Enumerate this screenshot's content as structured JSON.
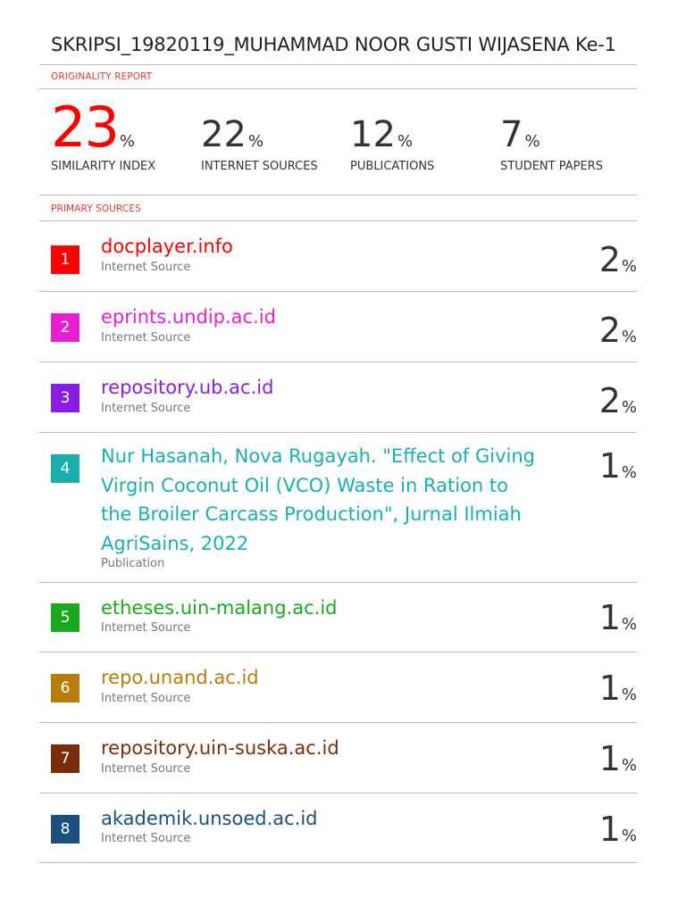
{
  "document_title": "SKRIPSI_19820119_MUHAMMAD NOOR GUSTI WIJASENA Ke-1",
  "originality_report_label": "ORIGINALITY REPORT",
  "stats": [
    {
      "value": "23",
      "unit": "%",
      "label": "SIMILARITY INDEX"
    },
    {
      "value": "22",
      "unit": "%",
      "label": "INTERNET SOURCES"
    },
    {
      "value": "12",
      "unit": "%",
      "label": "PUBLICATIONS"
    },
    {
      "value": "7",
      "unit": "%",
      "label": "STUDENT PAPERS"
    }
  ],
  "primary_sources_label": "PRIMARY SOURCES",
  "sources": [
    {
      "number": "1",
      "name": "docplayer.info",
      "type": "Internet Source",
      "percent": "2",
      "unit": "%",
      "color": "#ff0000"
    },
    {
      "number": "2",
      "name": "eprints.undip.ac.id",
      "type": "Internet Source",
      "percent": "2",
      "unit": "%",
      "color": "#e91ed3"
    },
    {
      "number": "3",
      "name": "repository.ub.ac.id",
      "type": "Internet Source",
      "percent": "2",
      "unit": "%",
      "color": "#8a1de4"
    },
    {
      "number": "4",
      "name": "Nur Hasanah, Nova Rugayah. \"Effect of Giving Virgin Coconut Oil (VCO) Waste in Ration to the Broiler Carcass Production\", Jurnal Ilmiah AgriSains, 2022",
      "name_lines": [
        "Nur Hasanah, Nova Rugayah. \"Effect of Giving",
        "Virgin Coconut Oil (VCO) Waste in Ration to",
        "the Broiler Carcass Production\", Jurnal Ilmiah",
        "AgriSains, 2022"
      ],
      "type": "Publication",
      "percent": "1",
      "unit": "%",
      "color": "#1aaeae"
    },
    {
      "number": "5",
      "name": "etheses.uin-malang.ac.id",
      "type": "Internet Source",
      "percent": "1",
      "unit": "%",
      "color": "#1aa81e"
    },
    {
      "number": "6",
      "name": "repo.unand.ac.id",
      "type": "Internet Source",
      "percent": "1",
      "unit": "%",
      "color": "#b87d0a"
    },
    {
      "number": "7",
      "name": "repository.uin-suska.ac.id",
      "type": "Internet Source",
      "percent": "1",
      "unit": "%",
      "color": "#7b2d0a"
    },
    {
      "number": "8",
      "name": "akademik.unsoed.ac.id",
      "type": "Internet Source",
      "percent": "1",
      "unit": "%",
      "color": "#1a4f80"
    }
  ]
}
